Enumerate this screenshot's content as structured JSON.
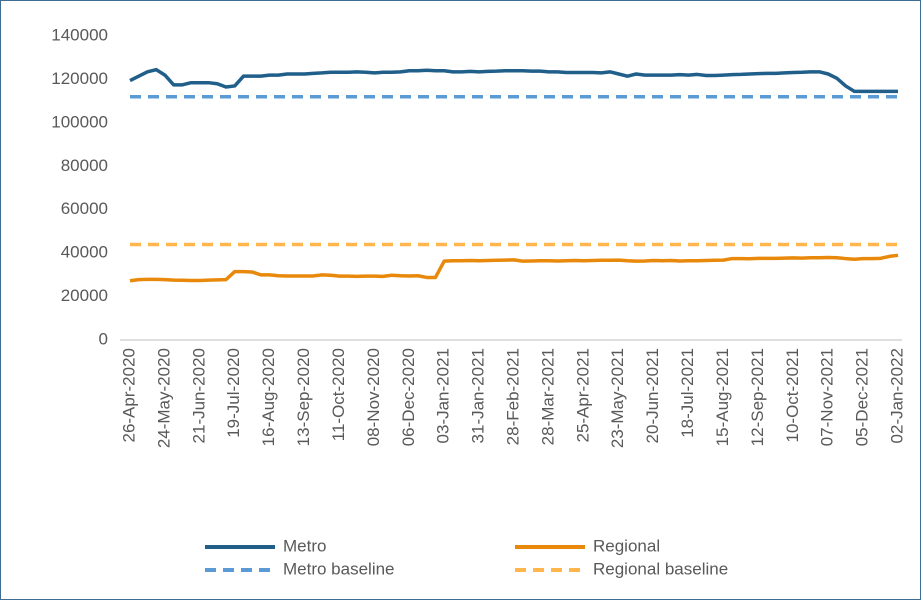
{
  "chart_data": {
    "type": "line",
    "categories": [
      "26-Apr-2020",
      null,
      null,
      null,
      "24-May-2020",
      null,
      null,
      null,
      "21-Jun-2020",
      null,
      null,
      null,
      "19-Jul-2020",
      null,
      null,
      null,
      "16-Aug-2020",
      null,
      null,
      null,
      "13-Sep-2020",
      null,
      null,
      null,
      "11-Oct-2020",
      null,
      null,
      null,
      "08-Nov-2020",
      null,
      null,
      null,
      "06-Dec-2020",
      null,
      null,
      null,
      "03-Jan-2021",
      null,
      null,
      null,
      "31-Jan-2021",
      null,
      null,
      null,
      "28-Feb-2021",
      null,
      null,
      null,
      "28-Mar-2021",
      null,
      null,
      null,
      "25-Apr-2021",
      null,
      null,
      null,
      "23-May-2021",
      null,
      null,
      null,
      "20-Jun-2021",
      null,
      null,
      null,
      "18-Jul-2021",
      null,
      null,
      null,
      "15-Aug-2021",
      null,
      null,
      null,
      "12-Sep-2021",
      null,
      null,
      null,
      "10-Oct-2021",
      null,
      null,
      null,
      "07-Nov-2021",
      null,
      null,
      null,
      "05-Dec-2021",
      null,
      null,
      null,
      "02-Jan-2022"
    ],
    "series": [
      {
        "name": "Metro",
        "color": "#215f8b",
        "line_style": "solid",
        "values": [
          119500,
          121500,
          123500,
          124500,
          122000,
          117500,
          117500,
          118500,
          118500,
          118500,
          118000,
          116500,
          117000,
          121500,
          121500,
          121500,
          122000,
          122000,
          122500,
          122500,
          122500,
          122800,
          123000,
          123300,
          123300,
          123300,
          123500,
          123300,
          123000,
          123300,
          123300,
          123500,
          124000,
          124000,
          124200,
          124000,
          124000,
          123500,
          123500,
          123700,
          123500,
          123700,
          123800,
          124000,
          124000,
          124000,
          123800,
          123800,
          123500,
          123500,
          123200,
          123200,
          123200,
          123200,
          123000,
          123500,
          122500,
          121500,
          122500,
          122000,
          122000,
          122000,
          122000,
          122200,
          122000,
          122300,
          121800,
          121800,
          122000,
          122200,
          122300,
          122500,
          122700,
          122800,
          122800,
          123000,
          123200,
          123300,
          123500,
          123500,
          122500,
          120500,
          117000,
          114500,
          114500,
          114500,
          114500,
          114500,
          114500
        ]
      },
      {
        "name": "Regional",
        "color": "#e8890c",
        "line_style": "solid",
        "values": [
          27300,
          27800,
          27900,
          27900,
          27800,
          27600,
          27500,
          27400,
          27400,
          27600,
          27700,
          27800,
          31500,
          31500,
          31300,
          30000,
          30000,
          29600,
          29500,
          29500,
          29500,
          29500,
          30000,
          29800,
          29400,
          29400,
          29300,
          29400,
          29400,
          29300,
          29800,
          29600,
          29500,
          29600,
          28800,
          28800,
          36300,
          36500,
          36500,
          36600,
          36500,
          36600,
          36700,
          36800,
          36900,
          36300,
          36400,
          36500,
          36500,
          36400,
          36500,
          36600,
          36500,
          36600,
          36700,
          36700,
          36800,
          36500,
          36300,
          36400,
          36600,
          36500,
          36600,
          36400,
          36500,
          36500,
          36600,
          36700,
          36800,
          37500,
          37500,
          37400,
          37600,
          37600,
          37600,
          37700,
          37800,
          37700,
          37900,
          37900,
          38000,
          37900,
          37500,
          37200,
          37500,
          37500,
          37600,
          38500,
          39000
        ]
      },
      {
        "name": "Metro baseline",
        "color": "#5b9bd5",
        "line_style": "dashed",
        "values": [
          112000,
          112000,
          112000,
          112000,
          112000,
          112000,
          112000,
          112000,
          112000,
          112000,
          112000,
          112000,
          112000,
          112000,
          112000,
          112000,
          112000,
          112000,
          112000,
          112000,
          112000,
          112000,
          112000,
          112000,
          112000,
          112000,
          112000,
          112000,
          112000,
          112000,
          112000,
          112000,
          112000,
          112000,
          112000,
          112000,
          112000,
          112000,
          112000,
          112000,
          112000,
          112000,
          112000,
          112000,
          112000,
          112000,
          112000,
          112000,
          112000,
          112000,
          112000,
          112000,
          112000,
          112000,
          112000,
          112000,
          112000,
          112000,
          112000,
          112000,
          112000,
          112000,
          112000,
          112000,
          112000,
          112000,
          112000,
          112000,
          112000,
          112000,
          112000,
          112000,
          112000,
          112000,
          112000,
          112000,
          112000,
          112000,
          112000,
          112000,
          112000,
          112000,
          112000,
          112000,
          112000,
          112000,
          112000,
          112000,
          112000
        ]
      },
      {
        "name": "Regional baseline",
        "color": "#ffb74d",
        "line_style": "dashed",
        "values": [
          44000,
          44000,
          44000,
          44000,
          44000,
          44000,
          44000,
          44000,
          44000,
          44000,
          44000,
          44000,
          44000,
          44000,
          44000,
          44000,
          44000,
          44000,
          44000,
          44000,
          44000,
          44000,
          44000,
          44000,
          44000,
          44000,
          44000,
          44000,
          44000,
          44000,
          44000,
          44000,
          44000,
          44000,
          44000,
          44000,
          44000,
          44000,
          44000,
          44000,
          44000,
          44000,
          44000,
          44000,
          44000,
          44000,
          44000,
          44000,
          44000,
          44000,
          44000,
          44000,
          44000,
          44000,
          44000,
          44000,
          44000,
          44000,
          44000,
          44000,
          44000,
          44000,
          44000,
          44000,
          44000,
          44000,
          44000,
          44000,
          44000,
          44000,
          44000,
          44000,
          44000,
          44000,
          44000,
          44000,
          44000,
          44000,
          44000,
          44000,
          44000,
          44000,
          44000,
          44000,
          44000,
          44000,
          44000,
          44000,
          44000
        ]
      }
    ],
    "ylim": [
      0,
      140000
    ],
    "yticks": [
      0,
      20000,
      40000,
      60000,
      80000,
      100000,
      120000,
      140000
    ],
    "grid": false
  }
}
